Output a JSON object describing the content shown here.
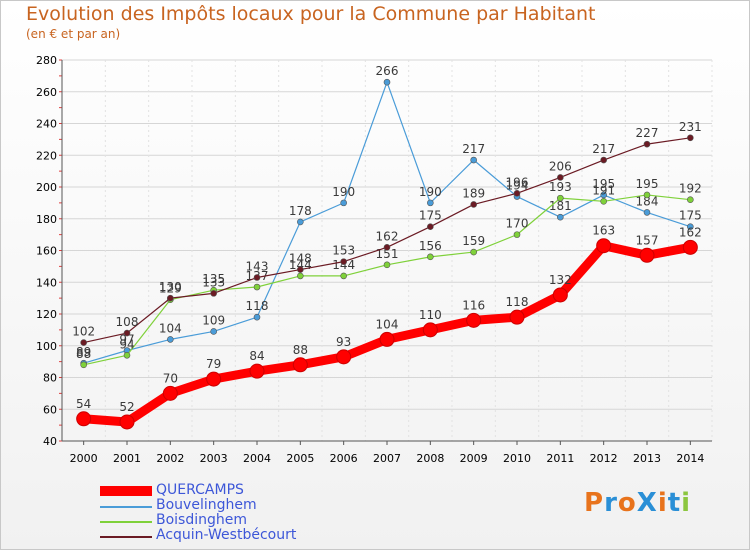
{
  "title": "Evolution des Impôts locaux pour la Commune par Habitant",
  "subtitle": "(en € et par an)",
  "logo": {
    "text": "ProXiti",
    "colors": [
      "#e8731c",
      "#2a8fd6",
      "#e8731c",
      "#2a8fd6",
      "#e8731c",
      "#2a8fd6",
      "#8cc63f"
    ]
  },
  "chart_data": {
    "type": "line",
    "title": "Evolution des Impôts locaux pour la Commune par Habitant",
    "subtitle": "(en € et par an)",
    "xlabel": "",
    "ylabel": "",
    "ylim": [
      40,
      280
    ],
    "yticks": [
      40,
      60,
      80,
      100,
      120,
      140,
      160,
      180,
      200,
      220,
      240,
      260,
      280
    ],
    "grid": true,
    "legend": "bottom",
    "categories": [
      "2000",
      "2001",
      "2002",
      "2003",
      "2004",
      "2005",
      "2006",
      "2007",
      "2008",
      "2009",
      "2010",
      "2011",
      "2012",
      "2013",
      "2014"
    ],
    "series": [
      {
        "name": "QUERCAMPS",
        "color": "#ff0000",
        "values": [
          54,
          52,
          70,
          79,
          84,
          88,
          93,
          104,
          110,
          116,
          118,
          132,
          163,
          157,
          162
        ]
      },
      {
        "name": "Bouvelinghem",
        "color": "#4a9cd8",
        "values": [
          89,
          97,
          104,
          109,
          118,
          178,
          190,
          266,
          190,
          217,
          194,
          181,
          195,
          184,
          175
        ]
      },
      {
        "name": "Boisdinghem",
        "color": "#7fd13a",
        "values": [
          88,
          94,
          129,
          135,
          137,
          144,
          144,
          151,
          156,
          159,
          170,
          193,
          191,
          195,
          192
        ]
      },
      {
        "name": "Acquin-Westbécourt",
        "color": "#6b1b24",
        "values": [
          102,
          108,
          130,
          133,
          143,
          148,
          153,
          162,
          175,
          189,
          196,
          206,
          217,
          227,
          231
        ]
      }
    ]
  }
}
